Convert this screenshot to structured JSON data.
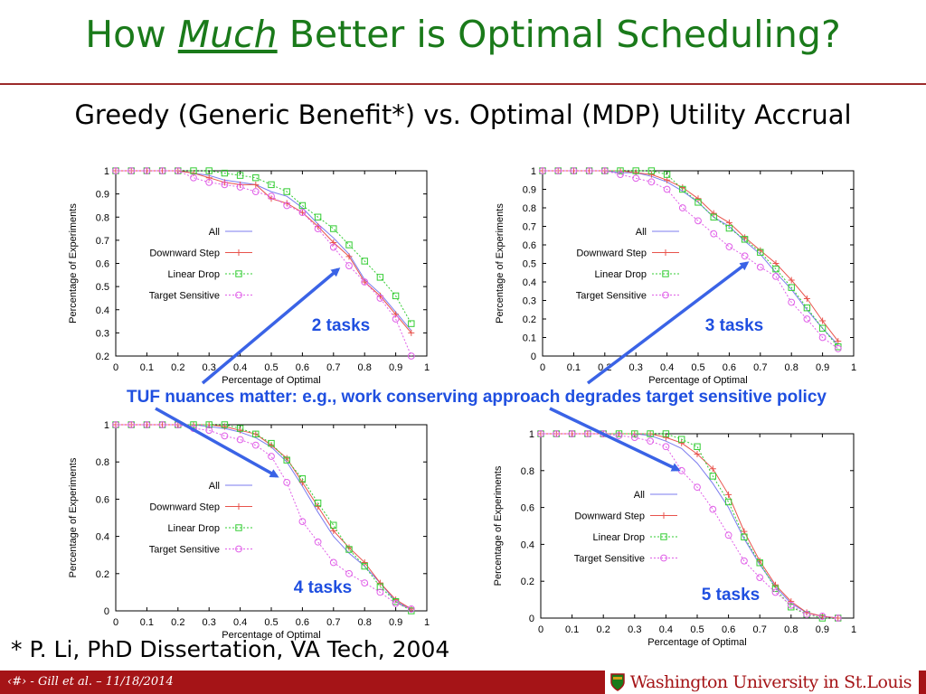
{
  "slide": {
    "title_prefix": "How ",
    "title_emphasis": "Much",
    "title_suffix": " Better is Optimal Scheduling?",
    "subtitle": "Greedy (Generic Benefit*) vs. Optimal (MDP) Utility Accrual",
    "callout": "TUF nuances matter: e.g., work conserving approach degrades target sensitive policy",
    "footnote": "* P. Li, PhD Dissertation, VA Tech, 2004",
    "footer_left": "‹#› - Gill et al. – 11/18/2014",
    "footer_right": "Washington University in St.Louis"
  },
  "colors": {
    "title": "#1a7a1a",
    "rule": "#9b2a2a",
    "footer": "#a51417",
    "callout": "#1f4fe0",
    "arrow": "#3a63e6",
    "series_all": "#7b7bef",
    "series_downward": "#e8534c",
    "series_linear": "#33cc33",
    "series_target": "#e060e8"
  },
  "chart_data": [
    {
      "type": "line",
      "annotation": "2 tasks",
      "xlabel": "Percentage of Optimal",
      "ylabel": "Percentage of Experiments",
      "xlim": [
        0,
        1
      ],
      "ylim": [
        0.2,
        1
      ],
      "xticks": [
        "0",
        "0.1",
        "0.2",
        "0.3",
        "0.4",
        "0.5",
        "0.6",
        "0.7",
        "0.8",
        "0.9",
        "1"
      ],
      "yticks": [
        "0.2",
        "0.3",
        "0.4",
        "0.5",
        "0.6",
        "0.7",
        "0.8",
        "0.9",
        "1"
      ],
      "legend": "center-right",
      "x": [
        0,
        0.05,
        0.1,
        0.15,
        0.2,
        0.25,
        0.3,
        0.35,
        0.4,
        0.45,
        0.5,
        0.55,
        0.6,
        0.65,
        0.7,
        0.75,
        0.8,
        0.85,
        0.9,
        0.95
      ],
      "series": [
        {
          "name": "All",
          "values": [
            1,
            1,
            1,
            1,
            1,
            0.99,
            0.98,
            0.96,
            0.95,
            0.94,
            0.91,
            0.89,
            0.84,
            0.77,
            0.71,
            0.64,
            0.53,
            0.47,
            0.39,
            0.31
          ]
        },
        {
          "name": "Downward Step",
          "values": [
            1,
            1,
            1,
            1,
            1,
            0.99,
            0.97,
            0.95,
            0.94,
            0.94,
            0.88,
            0.86,
            0.82,
            0.76,
            0.69,
            0.63,
            0.52,
            0.46,
            0.38,
            0.3
          ]
        },
        {
          "name": "Linear Drop",
          "values": [
            1,
            1,
            1,
            1,
            1,
            1,
            1,
            0.99,
            0.98,
            0.97,
            0.94,
            0.91,
            0.85,
            0.8,
            0.75,
            0.68,
            0.61,
            0.54,
            0.46,
            0.34
          ]
        },
        {
          "name": "Target Sensitive",
          "values": [
            1,
            1,
            1,
            1,
            1,
            0.97,
            0.95,
            0.94,
            0.93,
            0.91,
            0.89,
            0.85,
            0.82,
            0.75,
            0.67,
            0.59,
            0.52,
            0.45,
            0.36,
            0.2
          ]
        }
      ]
    },
    {
      "type": "line",
      "annotation": "3 tasks",
      "xlabel": "Percentage of Optimal",
      "ylabel": "Percentage of Experiments",
      "xlim": [
        0,
        1
      ],
      "ylim": [
        0,
        1
      ],
      "xticks": [
        "0",
        "0.1",
        "0.2",
        "0.3",
        "0.4",
        "0.5",
        "0.6",
        "0.7",
        "0.8",
        "0.9",
        "1"
      ],
      "yticks": [
        "0",
        "0.1",
        "0.2",
        "0.3",
        "0.4",
        "0.5",
        "0.6",
        "0.7",
        "0.8",
        "0.9",
        "1"
      ],
      "legend": "center-right",
      "x": [
        0,
        0.05,
        0.1,
        0.15,
        0.2,
        0.25,
        0.3,
        0.35,
        0.4,
        0.45,
        0.5,
        0.55,
        0.6,
        0.65,
        0.7,
        0.75,
        0.8,
        0.85,
        0.9,
        0.95
      ],
      "series": [
        {
          "name": "All",
          "values": [
            1,
            1,
            1,
            1,
            1,
            0.99,
            0.99,
            0.97,
            0.94,
            0.89,
            0.83,
            0.75,
            0.7,
            0.62,
            0.55,
            0.45,
            0.36,
            0.25,
            0.15,
            0.06
          ]
        },
        {
          "name": "Downward Step",
          "values": [
            1,
            1,
            1,
            1,
            1,
            1,
            0.99,
            0.98,
            0.95,
            0.91,
            0.85,
            0.77,
            0.72,
            0.64,
            0.57,
            0.5,
            0.41,
            0.31,
            0.19,
            0.08
          ]
        },
        {
          "name": "Linear Drop",
          "values": [
            1,
            1,
            1,
            1,
            1,
            1,
            1,
            1,
            0.98,
            0.9,
            0.83,
            0.75,
            0.69,
            0.63,
            0.56,
            0.47,
            0.37,
            0.26,
            0.15,
            0.05
          ]
        },
        {
          "name": "Target Sensitive",
          "values": [
            1,
            1,
            1,
            1,
            1,
            0.98,
            0.96,
            0.94,
            0.9,
            0.8,
            0.73,
            0.66,
            0.59,
            0.54,
            0.48,
            0.43,
            0.29,
            0.2,
            0.1,
            0.04
          ]
        }
      ]
    },
    {
      "type": "line",
      "annotation": "4 tasks",
      "xlabel": "Percentage of Optimal",
      "ylabel": "Percentage of Experiments",
      "xlim": [
        0,
        1
      ],
      "ylim": [
        0,
        1
      ],
      "xticks": [
        "0",
        "0.1",
        "0.2",
        "0.3",
        "0.4",
        "0.5",
        "0.6",
        "0.7",
        "0.8",
        "0.9",
        "1"
      ],
      "yticks": [
        "0",
        "0.2",
        "0.4",
        "0.6",
        "0.8",
        "1"
      ],
      "legend": "center-right",
      "x": [
        0,
        0.05,
        0.1,
        0.15,
        0.2,
        0.25,
        0.3,
        0.35,
        0.4,
        0.45,
        0.5,
        0.55,
        0.6,
        0.65,
        0.7,
        0.75,
        0.8,
        0.85,
        0.9,
        0.95
      ],
      "series": [
        {
          "name": "All",
          "values": [
            1,
            1,
            1,
            1,
            1,
            1,
            0.99,
            0.98,
            0.96,
            0.93,
            0.88,
            0.8,
            0.67,
            0.53,
            0.4,
            0.31,
            0.24,
            0.15,
            0.05,
            0.01
          ]
        },
        {
          "name": "Downward Step",
          "values": [
            1,
            1,
            1,
            1,
            1,
            1,
            1,
            0.99,
            0.97,
            0.95,
            0.89,
            0.82,
            0.69,
            0.56,
            0.43,
            0.34,
            0.26,
            0.15,
            0.06,
            0.01
          ]
        },
        {
          "name": "Linear Drop",
          "values": [
            1,
            1,
            1,
            1,
            1,
            1,
            1,
            1,
            0.98,
            0.95,
            0.9,
            0.81,
            0.71,
            0.58,
            0.46,
            0.33,
            0.24,
            0.13,
            0.05,
            0
          ]
        },
        {
          "name": "Target Sensitive",
          "values": [
            1,
            1,
            1,
            1,
            1,
            0.98,
            0.97,
            0.94,
            0.92,
            0.89,
            0.83,
            0.69,
            0.48,
            0.37,
            0.26,
            0.2,
            0.15,
            0.1,
            0.04,
            0.01
          ]
        }
      ]
    },
    {
      "type": "line",
      "annotation": "5 tasks",
      "xlabel": "Percentage of Optimal",
      "ylabel": "Percentage of Experiments",
      "xlim": [
        0,
        1
      ],
      "ylim": [
        0,
        1
      ],
      "xticks": [
        "0",
        "0.1",
        "0.2",
        "0.3",
        "0.4",
        "0.5",
        "0.6",
        "0.7",
        "0.8",
        "0.9",
        "1"
      ],
      "yticks": [
        "0",
        "0.2",
        "0.4",
        "0.6",
        "0.8",
        "1"
      ],
      "legend": "center-right",
      "x": [
        0,
        0.05,
        0.1,
        0.15,
        0.2,
        0.25,
        0.3,
        0.35,
        0.4,
        0.45,
        0.5,
        0.55,
        0.6,
        0.65,
        0.7,
        0.75,
        0.8,
        0.85,
        0.9,
        0.95
      ],
      "series": [
        {
          "name": "All",
          "values": [
            1,
            1,
            1,
            1,
            1,
            1,
            1,
            0.99,
            0.96,
            0.92,
            0.84,
            0.73,
            0.6,
            0.43,
            0.29,
            0.17,
            0.08,
            0.03,
            0.01,
            0
          ]
        },
        {
          "name": "Downward Step",
          "values": [
            1,
            1,
            1,
            1,
            1,
            1,
            1,
            1,
            0.98,
            0.95,
            0.89,
            0.81,
            0.67,
            0.47,
            0.31,
            0.18,
            0.09,
            0.03,
            0.01,
            0
          ]
        },
        {
          "name": "Linear Drop",
          "values": [
            1,
            1,
            1,
            1,
            1,
            1,
            1,
            1,
            1,
            0.97,
            0.93,
            0.77,
            0.63,
            0.44,
            0.3,
            0.16,
            0.06,
            0.02,
            0,
            0
          ]
        },
        {
          "name": "Target Sensitive",
          "values": [
            1,
            1,
            1,
            1,
            1,
            0.99,
            0.98,
            0.96,
            0.93,
            0.8,
            0.71,
            0.59,
            0.45,
            0.31,
            0.22,
            0.14,
            0.07,
            0.02,
            0.01,
            0
          ]
        }
      ]
    }
  ]
}
